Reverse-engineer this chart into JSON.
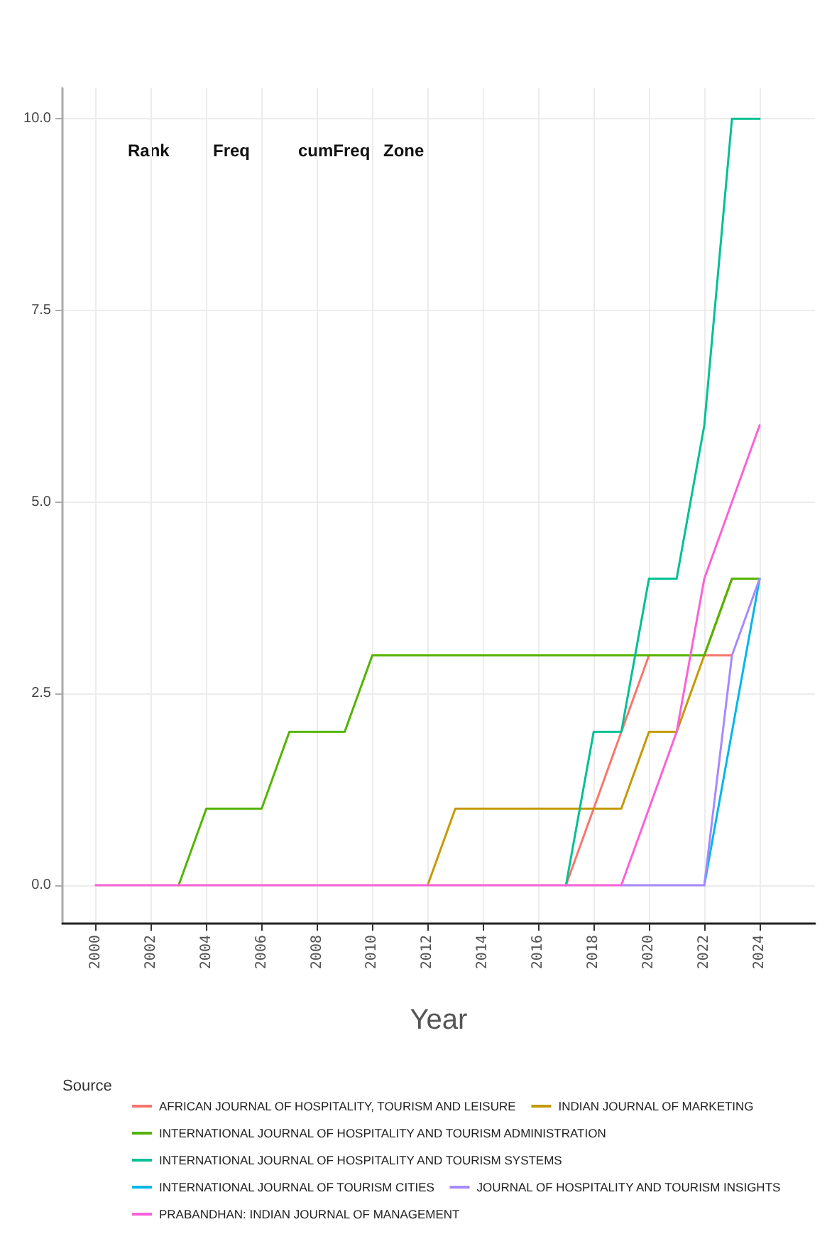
{
  "chart_data": {
    "type": "line",
    "xlabel": "Year",
    "legend_title": "Source",
    "legend": "bottom",
    "grid": true,
    "marker": "none",
    "line_style": "solid",
    "annotations": [
      "Rank",
      "Freq",
      "cumFreq",
      "Zone"
    ],
    "x": [
      2000,
      2001,
      2002,
      2003,
      2004,
      2005,
      2006,
      2007,
      2008,
      2009,
      2010,
      2011,
      2012,
      2013,
      2014,
      2015,
      2016,
      2017,
      2018,
      2019,
      2020,
      2021,
      2022,
      2023,
      2024
    ],
    "xlim": [
      1998.8,
      2026
    ],
    "xticks": [
      2000,
      2002,
      2004,
      2006,
      2008,
      2010,
      2012,
      2014,
      2016,
      2018,
      2020,
      2022,
      2024
    ],
    "ylim": [
      -0.5,
      10.4
    ],
    "yticks": [
      {
        "value": 0,
        "label": "0.0"
      },
      {
        "value": 2.5,
        "label": "2.5"
      },
      {
        "value": 5,
        "label": "5.0"
      },
      {
        "value": 7.5,
        "label": "7.5"
      },
      {
        "value": 10,
        "label": "10.0"
      }
    ],
    "series": [
      {
        "name": "AFRICAN JOURNAL OF HOSPITALITY, TOURISM AND LEISURE",
        "color": "#f8766d",
        "values": [
          null,
          null,
          null,
          null,
          null,
          null,
          null,
          null,
          null,
          null,
          null,
          null,
          null,
          null,
          null,
          null,
          null,
          0,
          1,
          2,
          3,
          null,
          3,
          3,
          null
        ]
      },
      {
        "name": "INDIAN JOURNAL OF MARKETING",
        "color": "#c49a00",
        "values": [
          null,
          null,
          null,
          null,
          null,
          null,
          null,
          null,
          null,
          null,
          null,
          null,
          0,
          1,
          1,
          1,
          1,
          1,
          1,
          1,
          2,
          2,
          3,
          4,
          null
        ]
      },
      {
        "name": "INTERNATIONAL JOURNAL OF HOSPITALITY AND TOURISM ADMINISTRATION",
        "color": "#53b400",
        "values": [
          null,
          null,
          null,
          0,
          1,
          1,
          1,
          2,
          2,
          2,
          3,
          3,
          3,
          3,
          3,
          3,
          3,
          3,
          3,
          3,
          3,
          3,
          3,
          4,
          4
        ]
      },
      {
        "name": "INTERNATIONAL JOURNAL OF HOSPITALITY AND TOURISM SYSTEMS",
        "color": "#00c094",
        "values": [
          null,
          null,
          null,
          null,
          null,
          null,
          null,
          null,
          null,
          null,
          null,
          null,
          null,
          null,
          null,
          null,
          null,
          0,
          2,
          2,
          4,
          4,
          6,
          10,
          10
        ]
      },
      {
        "name": "INTERNATIONAL JOURNAL OF TOURISM CITIES",
        "color": "#00b6eb",
        "values": [
          null,
          null,
          null,
          null,
          null,
          null,
          null,
          null,
          null,
          null,
          null,
          null,
          null,
          null,
          null,
          null,
          null,
          null,
          null,
          null,
          null,
          null,
          0,
          2,
          4
        ]
      },
      {
        "name": "JOURNAL OF HOSPITALITY AND TOURISM INSIGHTS",
        "color": "#a58aff",
        "values": [
          null,
          null,
          null,
          null,
          null,
          null,
          null,
          null,
          null,
          null,
          null,
          null,
          null,
          null,
          null,
          null,
          null,
          null,
          null,
          0,
          0,
          0,
          0,
          3,
          4
        ]
      },
      {
        "name": "PRABANDHAN: INDIAN JOURNAL OF MANAGEMENT",
        "color": "#fb61d7",
        "values": [
          0,
          0,
          0,
          0,
          0,
          0,
          0,
          0,
          0,
          0,
          0,
          0,
          0,
          0,
          0,
          0,
          0,
          0,
          0,
          0,
          1,
          2,
          4,
          5,
          6
        ]
      }
    ]
  }
}
